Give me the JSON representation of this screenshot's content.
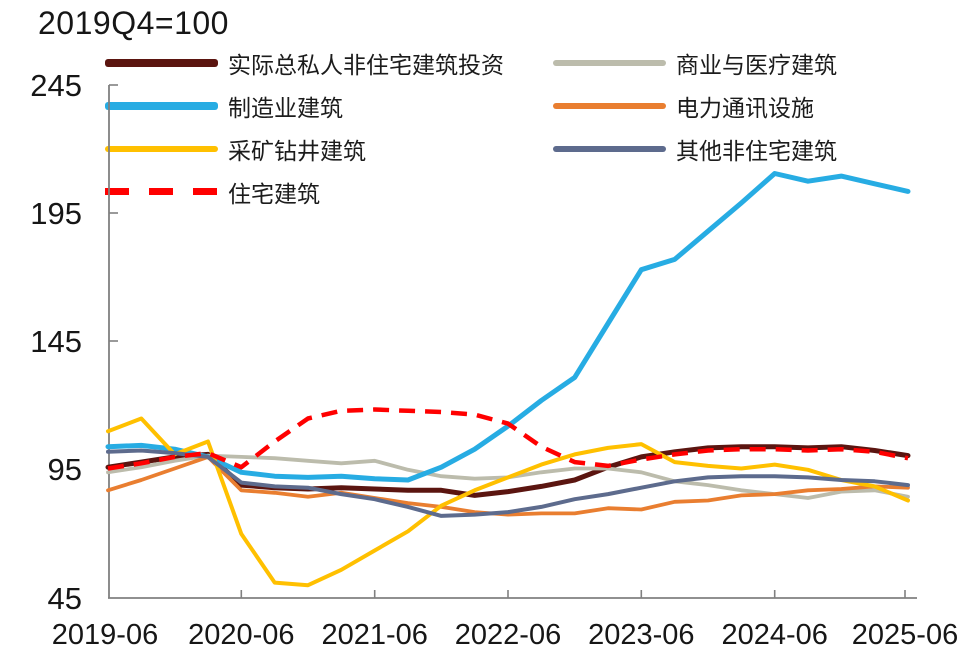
{
  "title": "2019Q4=100",
  "chart_data": {
    "type": "line",
    "title": "2019Q4=100",
    "grid": false,
    "legend_position": "top-left-two-columns",
    "ylim": [
      45,
      245
    ],
    "ytick_labels": [
      "245",
      "195",
      "145",
      "95",
      "45"
    ],
    "xtick_labels": [
      "2019-06",
      "2020-06",
      "2021-06",
      "2022-06",
      "2023-06",
      "2024-06",
      "2025-06"
    ],
    "x": [
      "2019-06",
      "2019-09",
      "2019-12",
      "2020-03",
      "2020-06",
      "2020-09",
      "2020-12",
      "2021-03",
      "2021-06",
      "2021-09",
      "2021-12",
      "2022-03",
      "2022-06",
      "2022-09",
      "2022-12",
      "2023-03",
      "2023-06",
      "2023-09",
      "2023-12",
      "2024-03",
      "2024-06",
      "2024-09",
      "2024-12",
      "2025-03",
      "2025-06"
    ],
    "series": [
      {
        "key": "total-private-nonresidential",
        "name": "实际总私人非住宅建筑投资",
        "color": "#5B1510",
        "width": 5,
        "dash": false,
        "values": [
          96,
          98,
          100,
          101,
          89,
          88,
          87.5,
          88,
          87.5,
          87,
          87,
          85,
          86.5,
          88.5,
          91,
          96,
          100,
          102,
          103.5,
          104,
          104,
          103.5,
          104,
          102.5,
          100.5
        ]
      },
      {
        "key": "commercial-medical",
        "name": "商业与医疗建筑",
        "color": "#BCBCAC",
        "width": 3.8,
        "dash": false,
        "values": [
          94,
          96,
          98.5,
          100.5,
          100,
          99.5,
          98.5,
          97.5,
          98.5,
          95,
          92.5,
          91.5,
          92,
          94,
          95.5,
          95.5,
          94,
          90.5,
          89,
          87,
          85.5,
          84,
          86.5,
          87,
          84.5
        ]
      },
      {
        "key": "manufacturing",
        "name": "制造业建筑",
        "color": "#27ACE3",
        "width": 5,
        "dash": false,
        "values": [
          104,
          104.5,
          103,
          100,
          94,
          92.5,
          92,
          92.5,
          91.5,
          91,
          96,
          103,
          112,
          122,
          131,
          152,
          173,
          177,
          188,
          199,
          210.5,
          207.5,
          209.5,
          206.5,
          203.5
        ]
      },
      {
        "key": "power-telecom",
        "name": "电力通讯设施",
        "color": "#E97E30",
        "width": 3.8,
        "dash": false,
        "values": [
          87,
          91,
          95.5,
          100,
          87,
          86,
          84.5,
          86,
          84,
          82,
          80.5,
          78.5,
          77.5,
          78,
          78,
          80,
          79.5,
          82.5,
          83,
          85,
          85.5,
          87,
          87.5,
          88.5,
          88
        ]
      },
      {
        "key": "mining-drilling",
        "name": "采矿钻井建筑",
        "color": "#FFC000",
        "width": 4,
        "dash": false,
        "values": [
          110,
          115,
          101,
          106,
          70,
          51,
          50,
          56,
          63.5,
          71,
          81,
          87,
          92,
          97,
          101,
          103.5,
          105,
          98,
          96.5,
          95.5,
          97,
          95,
          91,
          88.5,
          83
        ]
      },
      {
        "key": "other-nonresidential",
        "name": "其他非住宅建筑",
        "color": "#5D6B8D",
        "width": 4,
        "dash": false,
        "values": [
          102,
          102.5,
          101.5,
          100,
          90,
          88.5,
          88,
          85.5,
          83.5,
          80.5,
          77,
          77.5,
          78.5,
          80.5,
          83.5,
          85.5,
          88,
          90.5,
          92,
          92.5,
          92.5,
          92,
          91,
          90.5,
          89
        ]
      },
      {
        "key": "residential",
        "name": "住宅建筑",
        "color": "#FF0000",
        "width": 4.5,
        "dash": true,
        "values": [
          95.5,
          97.5,
          100,
          101.5,
          96,
          106,
          115,
          118,
          118.5,
          118,
          117.5,
          116.5,
          113,
          104,
          98,
          96.5,
          99,
          101,
          102.5,
          103,
          103,
          102.5,
          103,
          102,
          99.5
        ]
      }
    ]
  }
}
